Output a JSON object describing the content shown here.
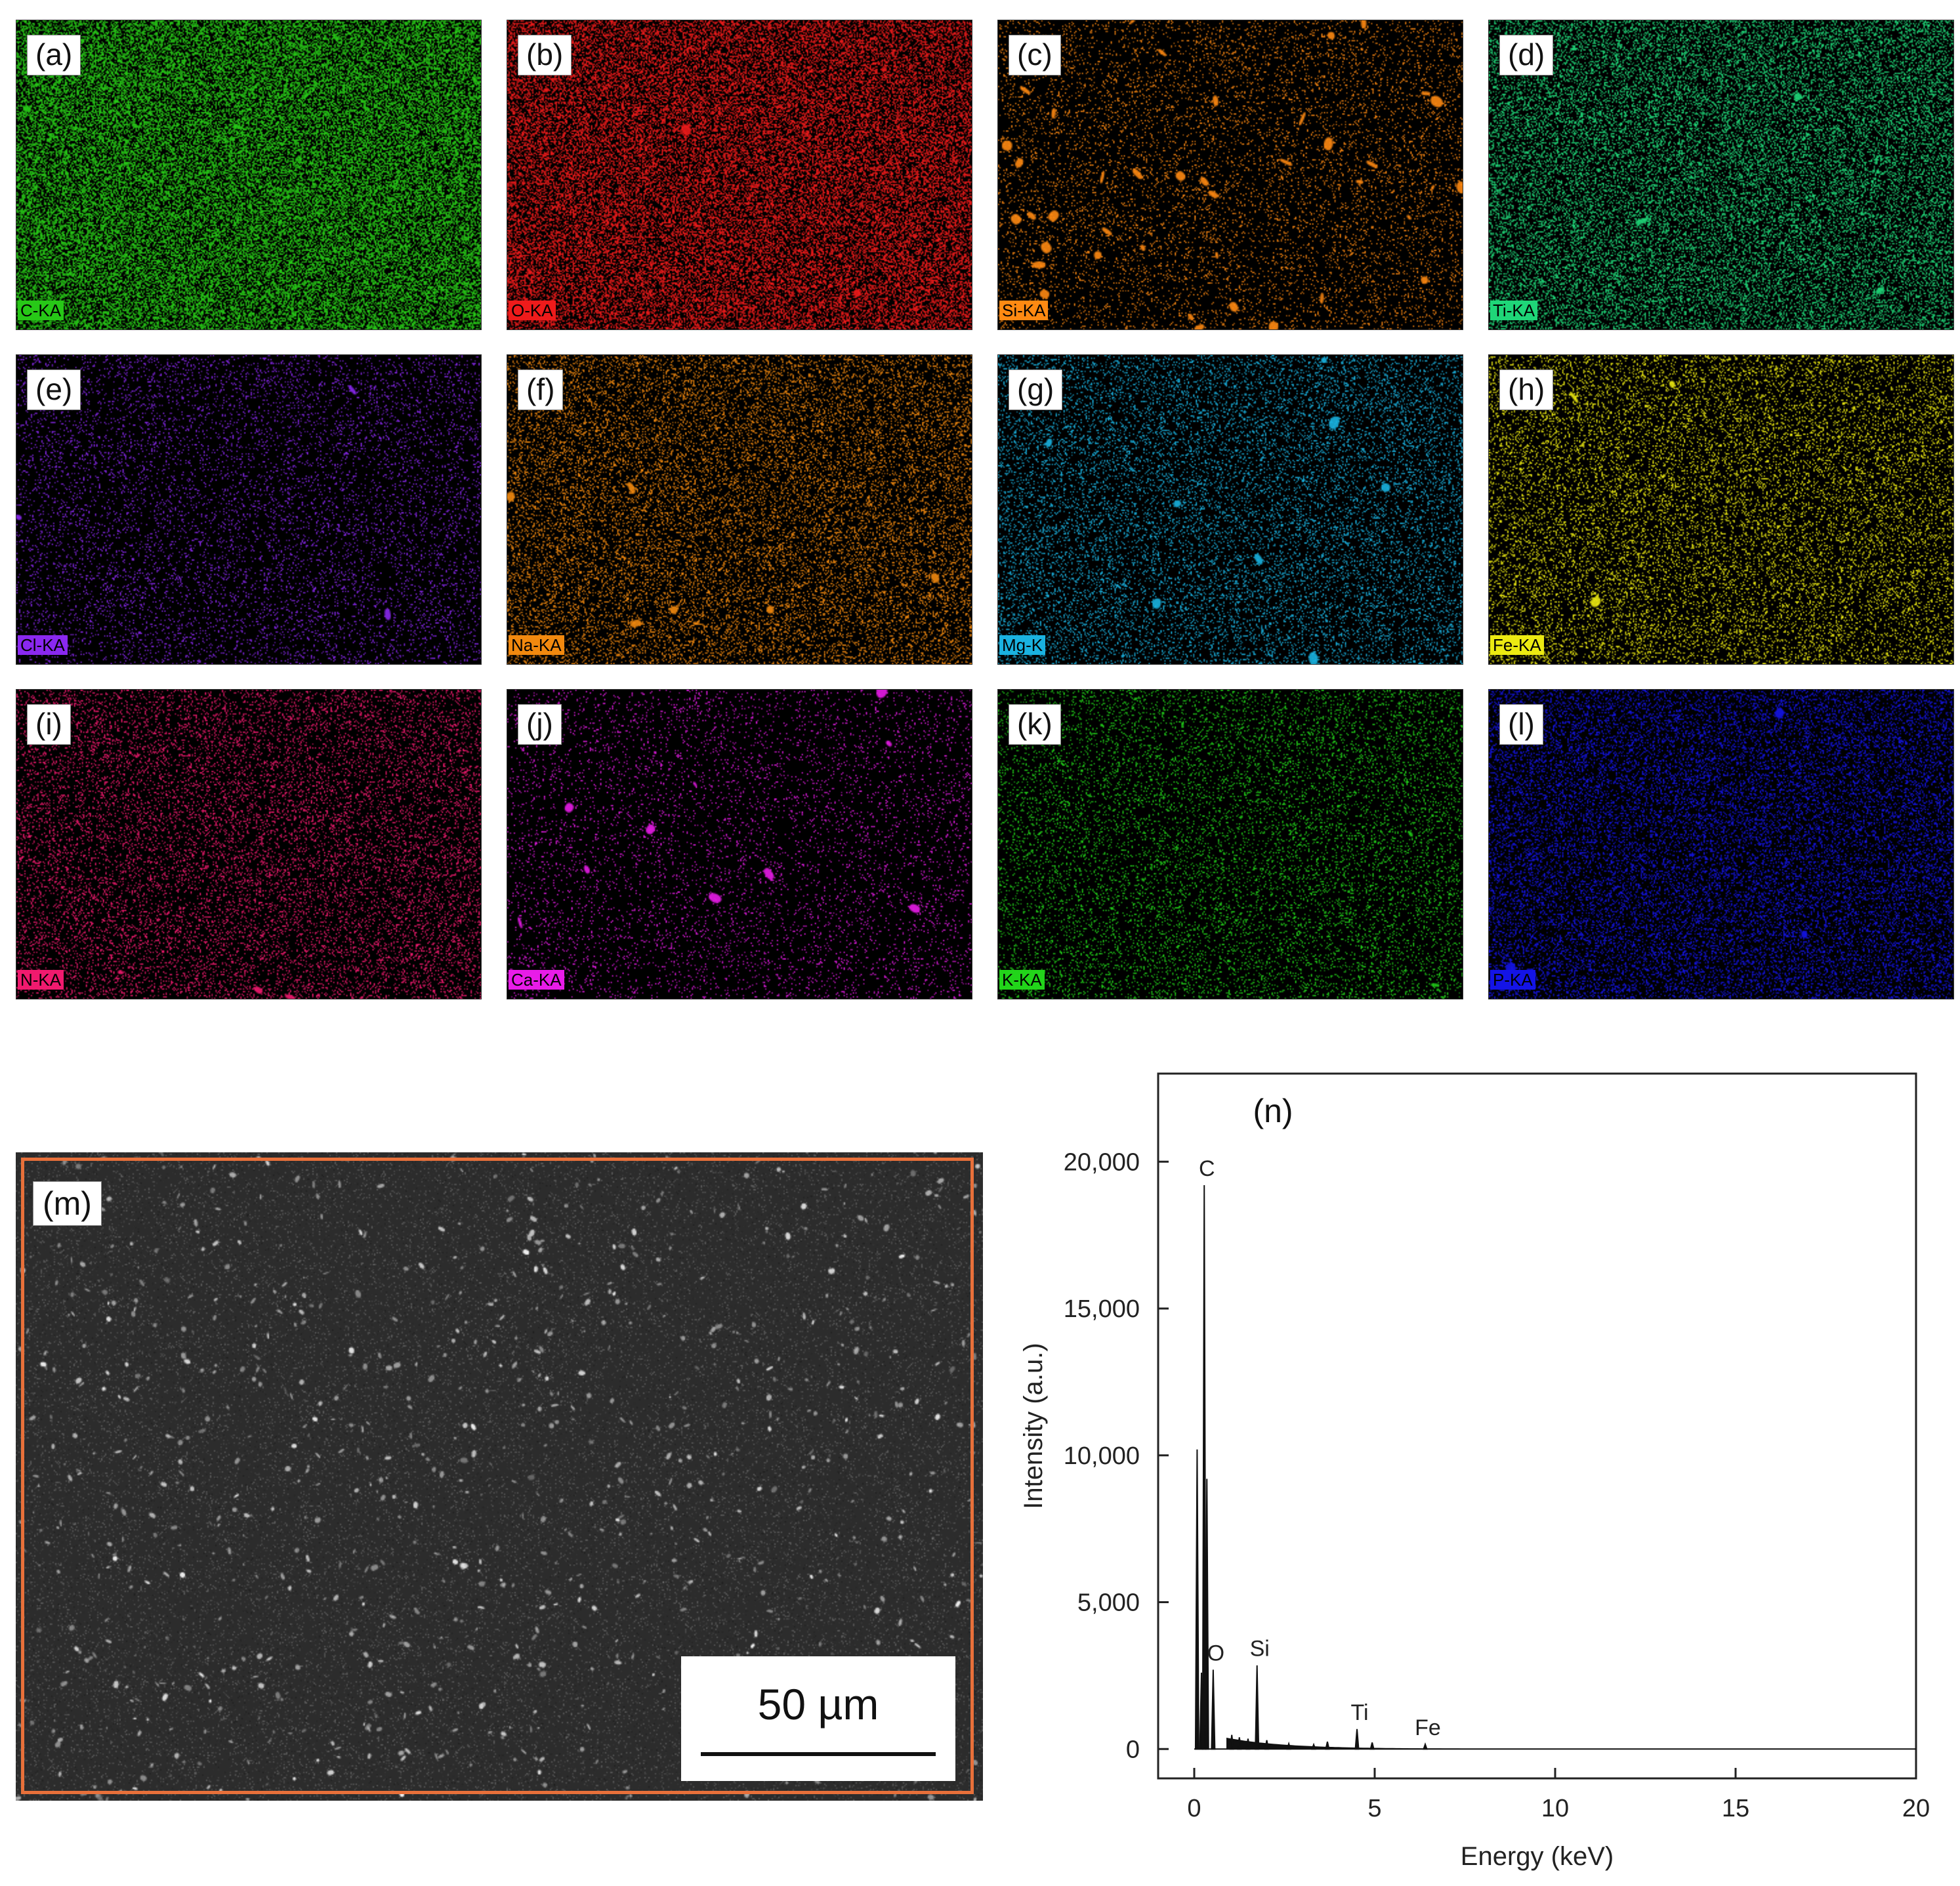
{
  "element_maps": [
    {
      "panel": "(a)",
      "element": "C-KA",
      "color": "#27c817"
    },
    {
      "panel": "(b)",
      "element": "O-KA",
      "color": "#ee1b1b"
    },
    {
      "panel": "(c)",
      "element": "Si-KA",
      "color": "#ff8a12"
    },
    {
      "panel": "(d)",
      "element": "Ti-KA",
      "color": "#1fd678"
    },
    {
      "panel": "(e)",
      "element": "Cl-KA",
      "color": "#8a28f0"
    },
    {
      "panel": "(f)",
      "element": "Na-KA",
      "color": "#f2890f"
    },
    {
      "panel": "(g)",
      "element": "Mg-K",
      "color": "#1ab2e0"
    },
    {
      "panel": "(h)",
      "element": "Fe-KA",
      "color": "#ecea12"
    },
    {
      "panel": "(i)",
      "element": "N-KA",
      "color": "#f01a6e"
    },
    {
      "panel": "(j)",
      "element": "Ca-KA",
      "color": "#e81ce8"
    },
    {
      "panel": "(k)",
      "element": "K-KA",
      "color": "#22d41a"
    },
    {
      "panel": "(l)",
      "element": "P-KA",
      "color": "#1414e6"
    }
  ],
  "sem_image": {
    "panel": "(m)",
    "scale_bar_label": "50 µm",
    "frame_color": "#e8703a"
  },
  "chart_data": {
    "type": "line",
    "panel": "(n)",
    "title": "",
    "xlabel": "Energy (keV)",
    "ylabel": "Intensity (a.u.)",
    "xlim": [
      -1,
      20
    ],
    "ylim": [
      -1000,
      23000
    ],
    "x_ticks": [
      0,
      5,
      10,
      15,
      20
    ],
    "x_tick_labels": [
      "0",
      "5",
      "10",
      "15",
      "20"
    ],
    "y_ticks": [
      0,
      5000,
      10000,
      15000,
      20000
    ],
    "y_tick_labels": [
      "0",
      "5,000",
      "10,000",
      "15,000",
      "20,000"
    ],
    "grid": false,
    "peaks": [
      {
        "x": 0.08,
        "y": 10200
      },
      {
        "x": 0.2,
        "y": 2600
      },
      {
        "x": 0.277,
        "y": 19200
      },
      {
        "x": 0.35,
        "y": 9200
      },
      {
        "x": 0.525,
        "y": 2700
      },
      {
        "x": 1.04,
        "y": 480
      },
      {
        "x": 1.25,
        "y": 400
      },
      {
        "x": 1.49,
        "y": 350
      },
      {
        "x": 1.74,
        "y": 2850
      },
      {
        "x": 2.01,
        "y": 300
      },
      {
        "x": 2.62,
        "y": 180
      },
      {
        "x": 3.31,
        "y": 150
      },
      {
        "x": 3.69,
        "y": 250
      },
      {
        "x": 4.51,
        "y": 680
      },
      {
        "x": 4.93,
        "y": 220
      },
      {
        "x": 6.4,
        "y": 160
      }
    ],
    "annotations": [
      {
        "label": "C",
        "x": 0.277,
        "y": 19200
      },
      {
        "label": "O",
        "x": 0.525,
        "y": 2700
      },
      {
        "label": "Si",
        "x": 1.74,
        "y": 2850
      },
      {
        "label": "Ti",
        "x": 4.51,
        "y": 680
      },
      {
        "label": "Fe",
        "x": 6.4,
        "y": 160
      }
    ]
  }
}
